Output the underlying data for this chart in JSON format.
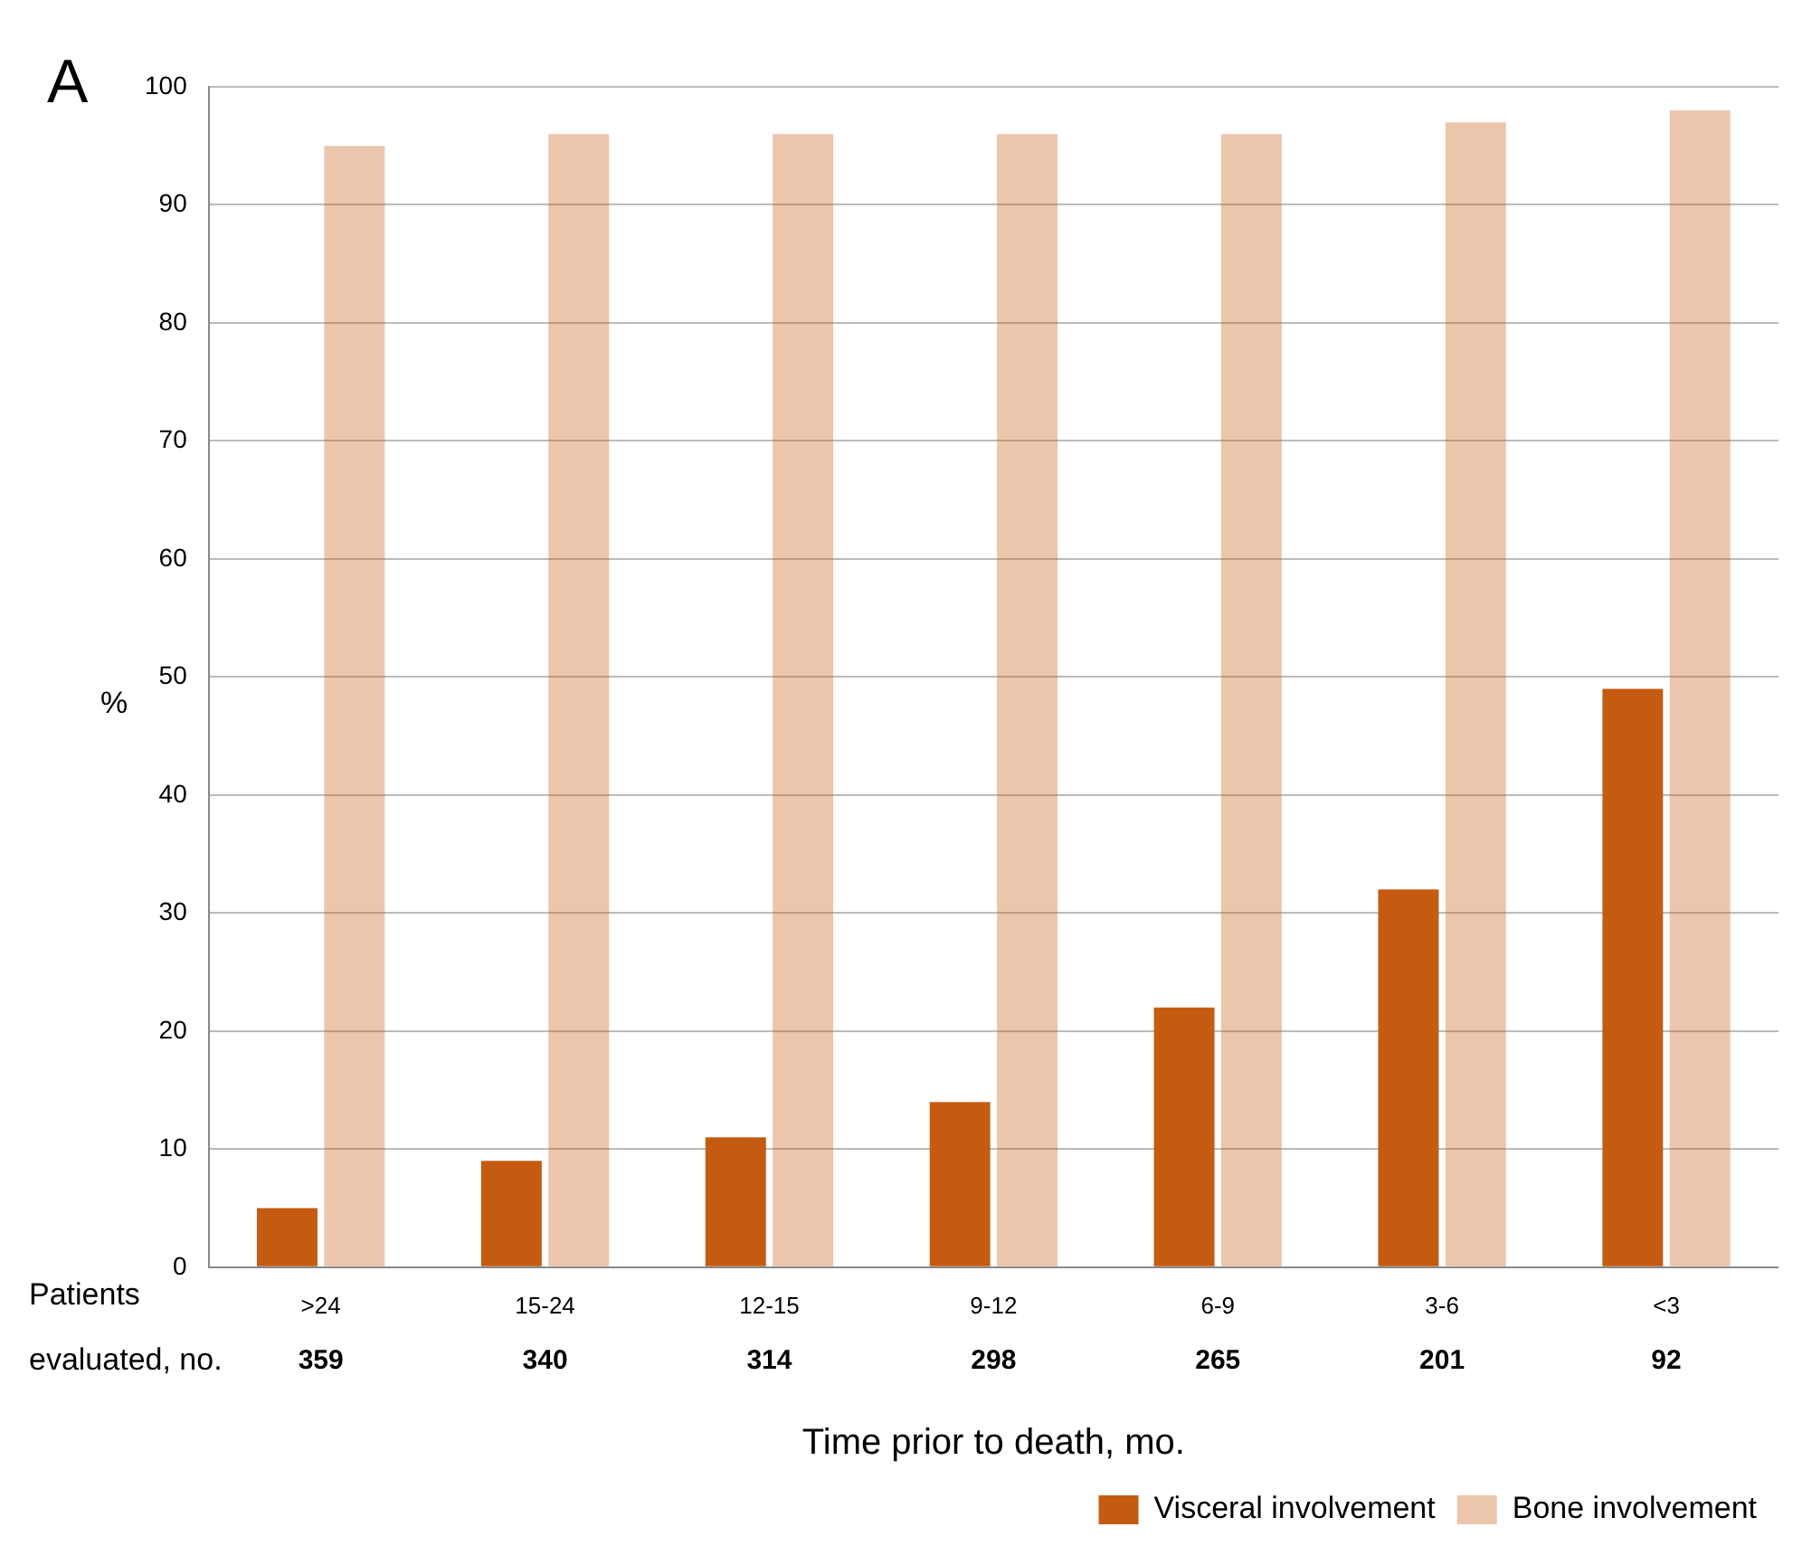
{
  "chart_data": {
    "type": "bar",
    "title": "A",
    "xlabel": "Time prior to death, mo.",
    "ylabel": "%",
    "categories": [
      ">24",
      "15-24",
      "12-15",
      "9-12",
      "6-9",
      "3-6",
      "<3"
    ],
    "series": [
      {
        "name": "Visceral involvement",
        "color": "#c55a11",
        "values": [
          5,
          9,
          11,
          14,
          22,
          32,
          49
        ]
      },
      {
        "name": "Bone involvement",
        "color": "#c55a11",
        "values": [
          95,
          96,
          96,
          96,
          96,
          97,
          98
        ]
      }
    ],
    "ylim": [
      0,
      100
    ],
    "yticks": [
      0,
      10,
      20,
      30,
      40,
      50,
      60,
      70,
      80,
      90,
      100
    ],
    "grid": "y",
    "legend": "bottom right",
    "annotations": [
      "Patients evaluated, no.",
      "359",
      "340",
      "314",
      "298",
      "265",
      "201",
      "92"
    ]
  }
}
